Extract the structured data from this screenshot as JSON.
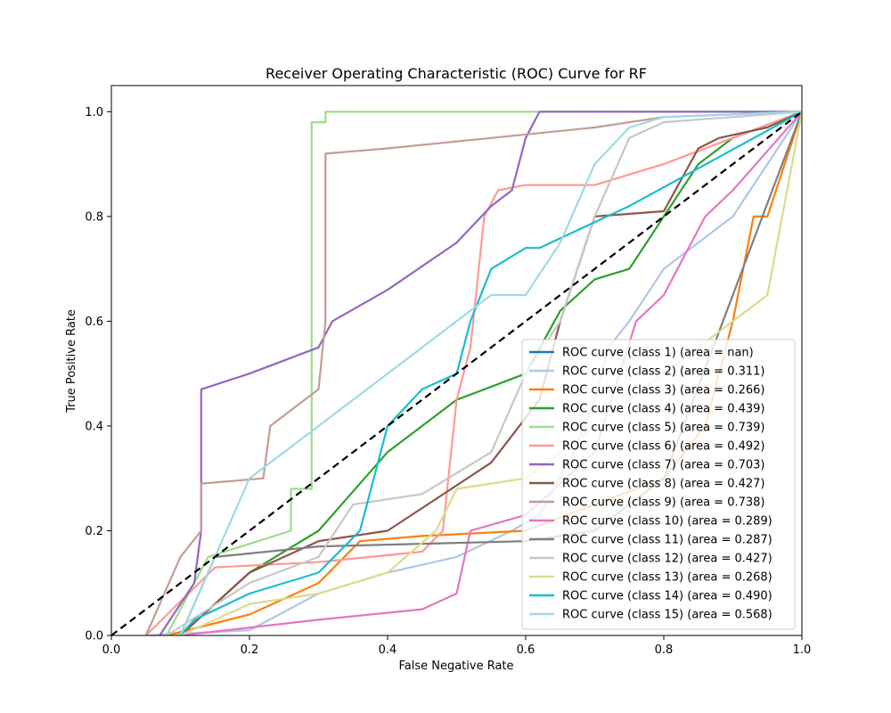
{
  "chart_data": {
    "type": "line",
    "title": "Receiver Operating Characteristic (ROC) Curve for RF",
    "xlabel": "False Negative Rate",
    "ylabel": "True Positive Rate",
    "xlim": [
      0.0,
      1.0
    ],
    "ylim": [
      0.0,
      1.05
    ],
    "xticks": [
      "0.0",
      "0.2",
      "0.4",
      "0.6",
      "0.8",
      "1.0"
    ],
    "yticks": [
      "0.0",
      "0.2",
      "0.4",
      "0.6",
      "0.8",
      "1.0"
    ],
    "grid": false,
    "legend_position": "lower-right",
    "diagonal": {
      "x": [
        0,
        1
      ],
      "y": [
        0,
        1
      ],
      "color": "#000000",
      "style": "dashed"
    },
    "series": [
      {
        "name": "ROC curve (class 1) (area = nan)",
        "color": "#1f77b4",
        "x": [],
        "y": []
      },
      {
        "name": "ROC curve (class 2) (area = 0.311)",
        "color": "#aec7e8",
        "x": [
          0.05,
          0.2,
          0.3,
          0.4,
          0.5,
          0.58,
          0.62,
          0.67,
          0.7,
          0.72,
          0.75,
          0.8,
          0.9,
          0.95,
          1.0
        ],
        "y": [
          0.0,
          0.01,
          0.08,
          0.12,
          0.15,
          0.2,
          0.23,
          0.35,
          0.45,
          0.55,
          0.6,
          0.7,
          0.8,
          0.9,
          1.0
        ]
      },
      {
        "name": "ROC curve (class 3) (area = 0.266)",
        "color": "#ff7f0e",
        "x": [
          0.08,
          0.2,
          0.3,
          0.36,
          0.45,
          0.6,
          0.7,
          0.8,
          0.86,
          0.9,
          0.93,
          0.95,
          1.0
        ],
        "y": [
          0.0,
          0.04,
          0.1,
          0.18,
          0.19,
          0.2,
          0.25,
          0.3,
          0.4,
          0.6,
          0.8,
          0.8,
          1.0
        ]
      },
      {
        "name": "ROC curve (class 4) (area = 0.439)",
        "color": "#2ca02c",
        "x": [
          0.1,
          0.2,
          0.3,
          0.4,
          0.5,
          0.6,
          0.65,
          0.7,
          0.75,
          0.8,
          0.85,
          0.9,
          1.0
        ],
        "y": [
          0.0,
          0.12,
          0.2,
          0.35,
          0.45,
          0.5,
          0.62,
          0.68,
          0.7,
          0.8,
          0.9,
          0.95,
          1.0
        ]
      },
      {
        "name": "ROC curve (class 5) (area = 0.739)",
        "color": "#98df8a",
        "x": [
          0.08,
          0.14,
          0.26,
          0.26,
          0.29,
          0.29,
          0.31,
          0.31,
          0.6,
          1.0
        ],
        "y": [
          0.0,
          0.15,
          0.2,
          0.28,
          0.28,
          0.98,
          0.98,
          1.0,
          1.0,
          1.0
        ]
      },
      {
        "name": "ROC curve (class 6) (area = 0.492)",
        "color": "#ff9896",
        "x": [
          0.05,
          0.15,
          0.3,
          0.45,
          0.48,
          0.5,
          0.52,
          0.54,
          0.56,
          0.6,
          0.7,
          0.8,
          1.0
        ],
        "y": [
          0.0,
          0.13,
          0.14,
          0.16,
          0.2,
          0.45,
          0.55,
          0.8,
          0.85,
          0.86,
          0.86,
          0.9,
          1.0
        ]
      },
      {
        "name": "ROC curve (class 7) (area = 0.703)",
        "color": "#9467bd",
        "x": [
          0.07,
          0.12,
          0.13,
          0.13,
          0.2,
          0.3,
          0.32,
          0.4,
          0.5,
          0.55,
          0.58,
          0.6,
          0.62,
          0.8,
          1.0
        ],
        "y": [
          0.0,
          0.1,
          0.2,
          0.47,
          0.5,
          0.55,
          0.6,
          0.66,
          0.75,
          0.82,
          0.85,
          0.95,
          1.0,
          1.0,
          1.0
        ]
      },
      {
        "name": "ROC curve (class 8) (area = 0.427)",
        "color": "#8c564b",
        "x": [
          0.1,
          0.2,
          0.3,
          0.4,
          0.55,
          0.62,
          0.65,
          0.7,
          0.8,
          0.85,
          0.88,
          0.95,
          1.0
        ],
        "y": [
          0.0,
          0.12,
          0.18,
          0.2,
          0.33,
          0.45,
          0.6,
          0.8,
          0.81,
          0.93,
          0.95,
          0.97,
          1.0
        ]
      },
      {
        "name": "ROC curve (class 9) (area = 0.738)",
        "color": "#c49c94",
        "x": [
          0.05,
          0.1,
          0.13,
          0.13,
          0.22,
          0.23,
          0.3,
          0.31,
          0.31,
          0.4,
          0.55,
          0.7,
          0.8,
          1.0
        ],
        "y": [
          0.0,
          0.15,
          0.2,
          0.29,
          0.3,
          0.4,
          0.47,
          0.6,
          0.92,
          0.93,
          0.95,
          0.97,
          0.99,
          1.0
        ]
      },
      {
        "name": "ROC curve (class 10) (area = 0.289)",
        "color": "#e377c2",
        "x": [
          0.1,
          0.3,
          0.45,
          0.5,
          0.52,
          0.6,
          0.7,
          0.76,
          0.8,
          0.86,
          0.9,
          1.0
        ],
        "y": [
          0.0,
          0.03,
          0.05,
          0.08,
          0.2,
          0.23,
          0.35,
          0.6,
          0.65,
          0.8,
          0.85,
          1.0
        ]
      },
      {
        "name": "ROC curve (class 11) (area = 0.287)",
        "color": "#7f7f7f",
        "x": [
          0.1,
          0.15,
          0.3,
          0.6,
          0.7,
          0.8,
          1.0
        ],
        "y": [
          0.0,
          0.15,
          0.17,
          0.18,
          0.2,
          0.3,
          1.0
        ]
      },
      {
        "name": "ROC curve (class 12) (area = 0.427)",
        "color": "#c7c7c7",
        "x": [
          0.08,
          0.2,
          0.3,
          0.35,
          0.45,
          0.55,
          0.6,
          0.65,
          0.7,
          0.75,
          0.8,
          0.9,
          1.0
        ],
        "y": [
          0.0,
          0.1,
          0.15,
          0.25,
          0.27,
          0.35,
          0.5,
          0.6,
          0.8,
          0.95,
          0.98,
          0.99,
          1.0
        ]
      },
      {
        "name": "ROC curve (class 13) (area = 0.268)",
        "color": "#dbdb8d",
        "x": [
          0.1,
          0.2,
          0.3,
          0.4,
          0.47,
          0.5,
          0.6,
          0.7,
          0.8,
          0.9,
          0.95,
          1.0
        ],
        "y": [
          0.0,
          0.06,
          0.08,
          0.12,
          0.2,
          0.28,
          0.3,
          0.4,
          0.5,
          0.6,
          0.65,
          1.0
        ]
      },
      {
        "name": "ROC curve (class 14) (area = 0.490)",
        "color": "#17becf",
        "x": [
          0.1,
          0.12,
          0.2,
          0.3,
          0.36,
          0.4,
          0.45,
          0.5,
          0.52,
          0.55,
          0.6,
          0.62,
          0.75,
          1.0
        ],
        "y": [
          0.0,
          0.03,
          0.08,
          0.12,
          0.2,
          0.4,
          0.47,
          0.5,
          0.6,
          0.7,
          0.74,
          0.74,
          0.82,
          1.0
        ]
      },
      {
        "name": "ROC curve (class 15) (area = 0.568)",
        "color": "#9edae5",
        "x": [
          0.1,
          0.15,
          0.2,
          0.3,
          0.4,
          0.5,
          0.55,
          0.6,
          0.65,
          0.7,
          0.75,
          0.8,
          1.0
        ],
        "y": [
          0.0,
          0.15,
          0.3,
          0.4,
          0.5,
          0.6,
          0.65,
          0.65,
          0.75,
          0.9,
          0.97,
          0.99,
          1.0
        ]
      }
    ]
  }
}
